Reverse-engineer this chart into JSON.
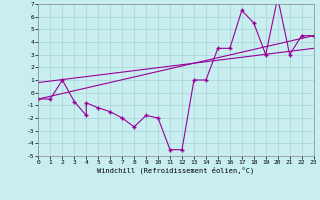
{
  "xlabel": "Windchill (Refroidissement éolien,°C)",
  "xlim": [
    0,
    23
  ],
  "ylim": [
    -5,
    7
  ],
  "xticks": [
    0,
    1,
    2,
    3,
    4,
    5,
    6,
    7,
    8,
    9,
    10,
    11,
    12,
    13,
    14,
    15,
    16,
    17,
    18,
    19,
    20,
    21,
    22,
    23
  ],
  "yticks": [
    -5,
    -4,
    -3,
    -2,
    -1,
    0,
    1,
    2,
    3,
    4,
    5,
    6,
    7
  ],
  "bg_color": "#c8eef0",
  "grid_color": "#b0d8dc",
  "line_color": "#990099",
  "data_x": [
    0,
    1,
    2,
    3,
    4,
    4,
    5,
    6,
    7,
    8,
    9,
    10,
    11,
    12,
    13,
    14,
    15,
    16,
    17,
    18,
    19,
    20,
    21,
    22,
    23
  ],
  "data_y": [
    -0.5,
    -0.5,
    1.0,
    -0.7,
    -1.8,
    -0.8,
    -1.2,
    -1.5,
    -2.0,
    -2.7,
    -1.8,
    -2.0,
    -4.5,
    -4.5,
    1.0,
    1.0,
    3.5,
    3.5,
    6.5,
    5.5,
    3.0,
    7.5,
    3.0,
    4.5,
    4.5
  ],
  "trend1_x": [
    0,
    23
  ],
  "trend1_y": [
    -0.5,
    4.5
  ],
  "trend2_x": [
    0,
    23
  ],
  "trend2_y": [
    0.8,
    3.5
  ]
}
